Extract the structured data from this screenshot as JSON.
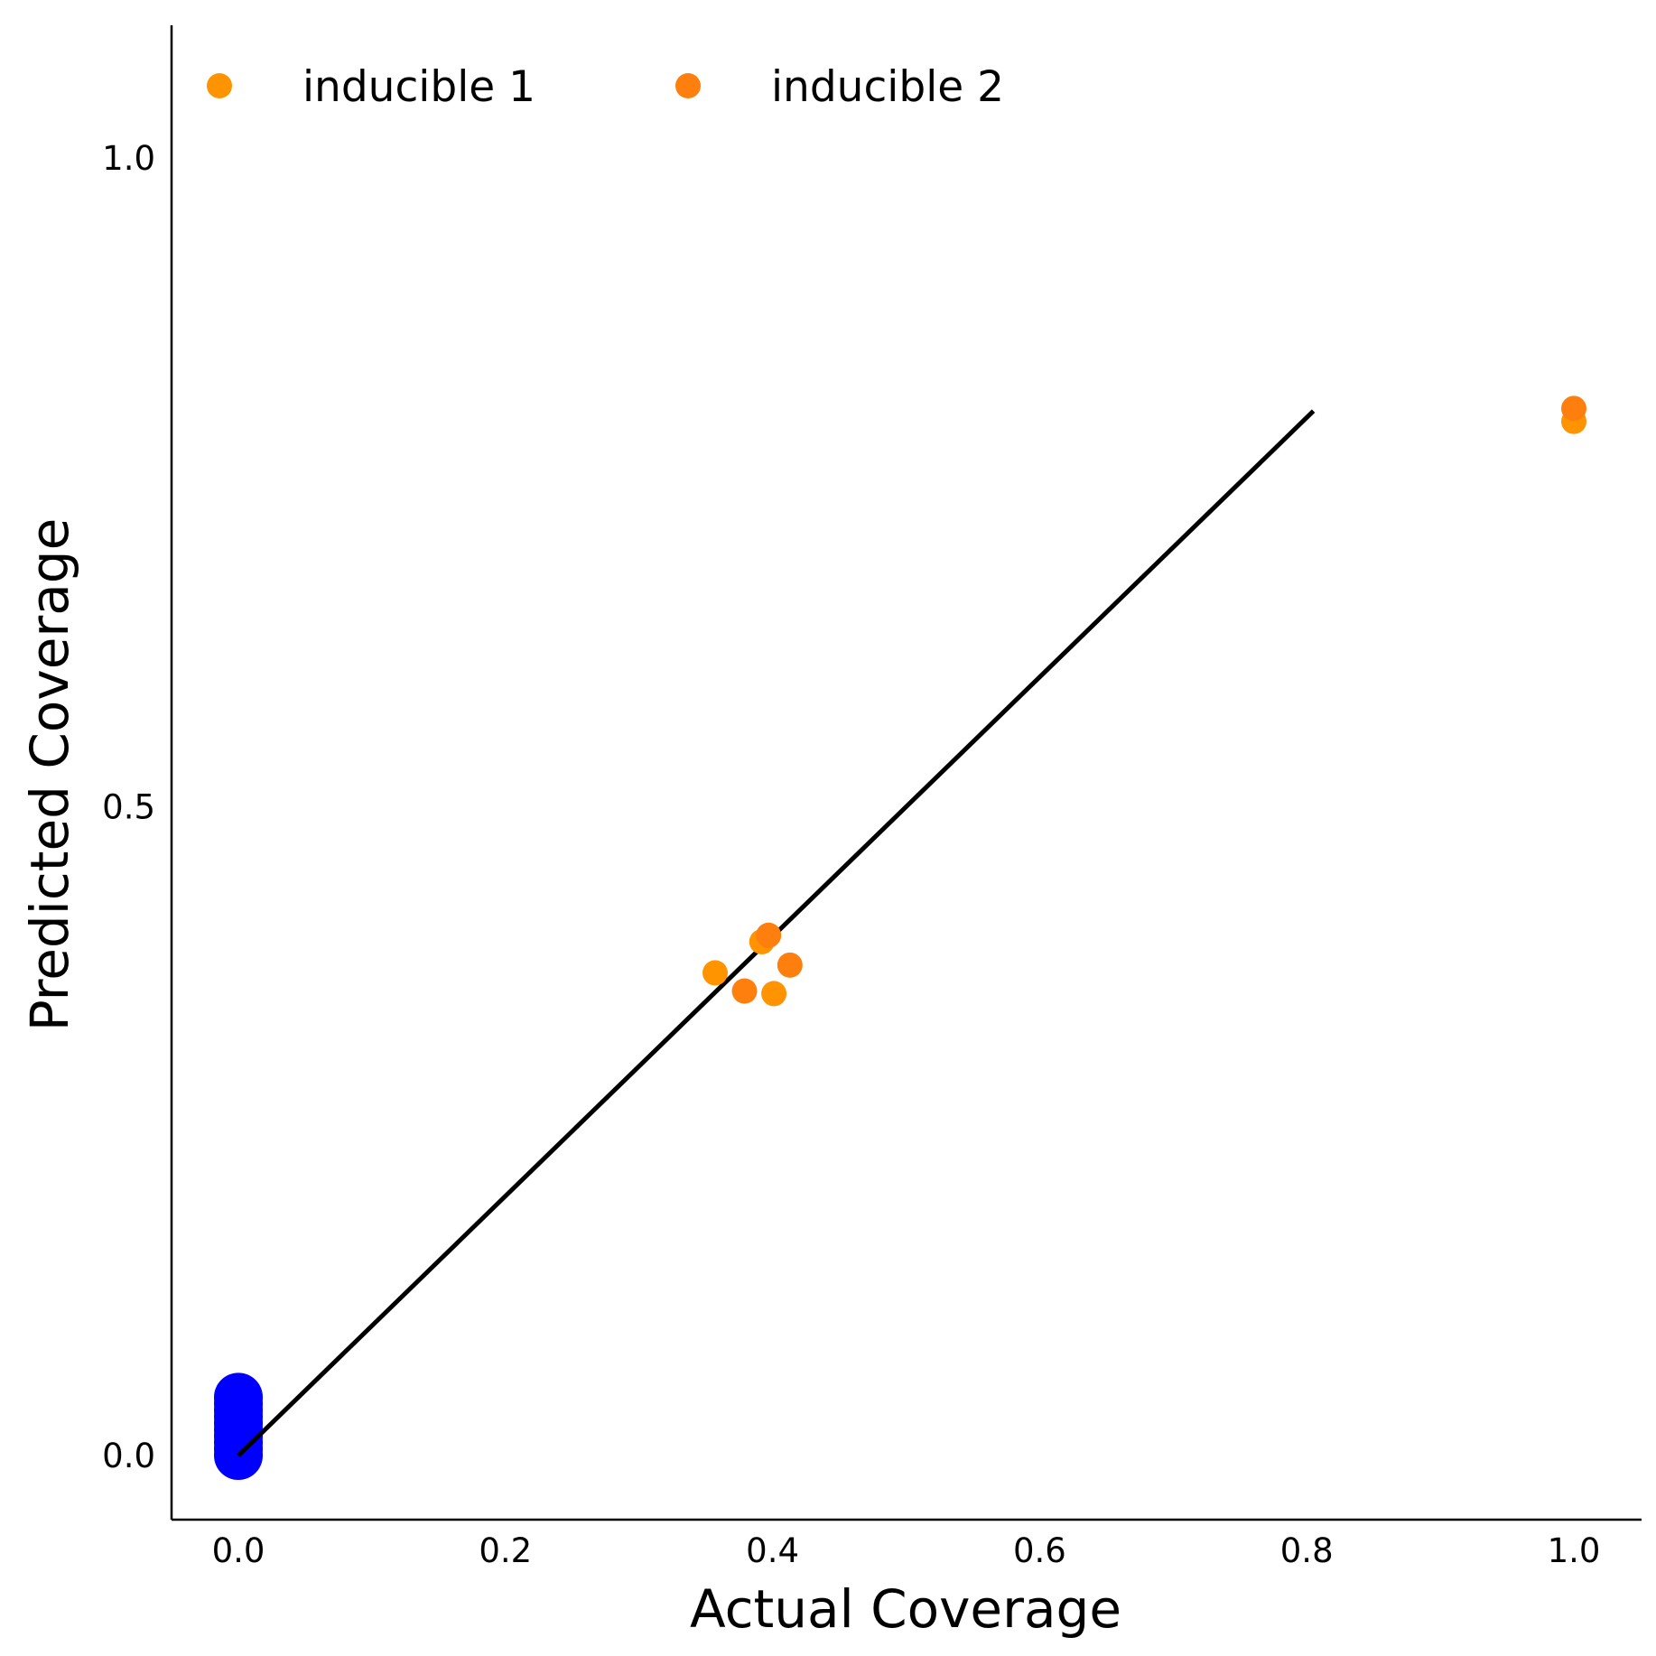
{
  "chart_data": {
    "type": "scatter",
    "title": "",
    "xlabel": "Actual Coverage",
    "ylabel": "Predicted Coverage",
    "xlim": [
      -0.05,
      1.05
    ],
    "ylim": [
      -0.05,
      1.1
    ],
    "xticks": [
      0.0,
      0.2,
      0.4,
      0.6,
      0.8,
      1.0
    ],
    "xtick_labels": [
      "0.0",
      "0.2",
      "0.4",
      "0.6",
      "0.8",
      "1.0"
    ],
    "yticks": [
      0.0,
      0.5,
      1.0
    ],
    "ytick_labels": [
      "0.0",
      "0.5",
      "1.0"
    ],
    "grid": false,
    "legend": {
      "placement": "top-left",
      "columns": 2
    },
    "series": [
      {
        "name": "inducible 1",
        "color": "#ff9400",
        "in_legend": true,
        "points": [
          {
            "x": 0.357,
            "y": 0.372
          },
          {
            "x": 0.392,
            "y": 0.396
          },
          {
            "x": 0.401,
            "y": 0.356
          },
          {
            "x": 1.0,
            "y": 0.797
          }
        ]
      },
      {
        "name": "inducible 2",
        "color": "#ff7f0e",
        "in_legend": true,
        "points": [
          {
            "x": 0.379,
            "y": 0.358
          },
          {
            "x": 0.397,
            "y": 0.401
          },
          {
            "x": 0.413,
            "y": 0.378
          },
          {
            "x": 1.0,
            "y": 0.807
          }
        ]
      },
      {
        "name": "",
        "color": "#0000ff",
        "in_legend": false,
        "points": [
          {
            "x": 0.0,
            "y": 0.0
          },
          {
            "x": 0.0,
            "y": 0.005
          },
          {
            "x": 0.0,
            "y": 0.01
          },
          {
            "x": 0.0,
            "y": 0.015
          },
          {
            "x": 0.0,
            "y": 0.02
          },
          {
            "x": 0.0,
            "y": 0.025
          },
          {
            "x": 0.0,
            "y": 0.03
          },
          {
            "x": 0.0,
            "y": 0.035
          },
          {
            "x": 0.0,
            "y": 0.04
          },
          {
            "x": 0.0,
            "y": 0.045
          }
        ]
      }
    ],
    "reference_line": {
      "color": "#000000",
      "from": {
        "x": 0.0,
        "y": 0.0
      },
      "to": {
        "x": 0.805,
        "y": 0.805
      }
    }
  }
}
